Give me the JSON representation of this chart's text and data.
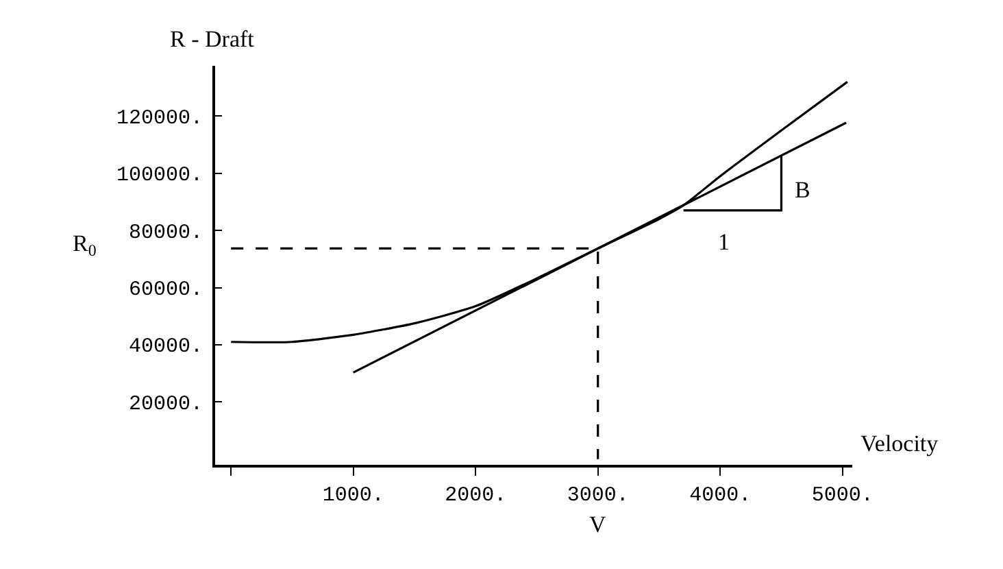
{
  "chart_data": {
    "type": "line",
    "title": "R - Draft",
    "xlabel": "Velocity",
    "ylabel": "R$_{0}$",
    "annotations": [
      "V",
      "1",
      "B"
    ],
    "series": [
      {
        "color": "#000000",
        "x": [
          0,
          500,
          1000,
          1500,
          2000,
          2500,
          3000,
          3500,
          3700,
          4000,
          4500,
          5040
        ],
        "values": [
          41000,
          41000,
          43500,
          47500,
          53500,
          63200,
          73700,
          84000,
          88800,
          99000,
          115000,
          132000
        ]
      },
      {
        "color": "#000000",
        "x": [
          1000,
          5030
        ],
        "values": [
          30300,
          117700
        ]
      },
      {
        "color": "#000000",
        "x": [
          3700,
          4500,
          4500
        ],
        "values": [
          87000,
          87000,
          106000
        ]
      },
      {
        "color": "#000000",
        "line_style": "dashed",
        "x": [
          0,
          3000,
          3000
        ],
        "values": [
          73700,
          73700,
          0
        ]
      }
    ],
    "xlim": [
      -130,
      5080
    ],
    "ylim": [
      -2000,
      137600
    ],
    "xticks": [
      {
        "value": 0,
        "label": null
      },
      {
        "value": 1000,
        "label": "1000."
      },
      {
        "value": 2000,
        "label": "2000."
      },
      {
        "value": 3000,
        "label": "3000."
      },
      {
        "value": 4000,
        "label": "4000."
      },
      {
        "value": 5000,
        "label": "5000."
      }
    ],
    "yticks": [
      {
        "value": 20000,
        "label": "20000."
      },
      {
        "value": 40000,
        "label": "40000."
      },
      {
        "value": 60000,
        "label": "60000."
      },
      {
        "value": 80000,
        "label": "80000."
      },
      {
        "value": 100000,
        "label": "100000."
      },
      {
        "value": 120000,
        "label": "120000."
      }
    ],
    "marker": "none",
    "line_style": "solid"
  }
}
